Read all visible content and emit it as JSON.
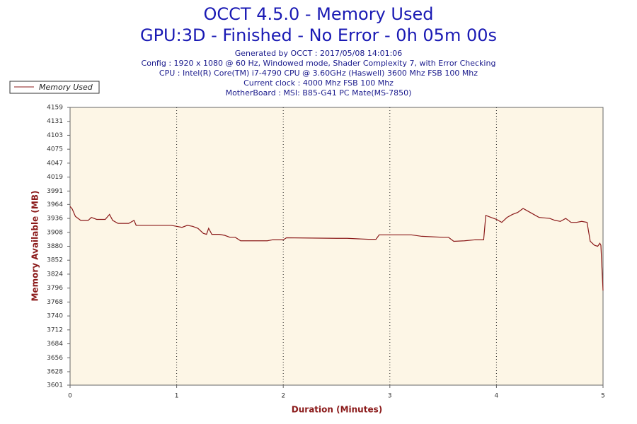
{
  "chart_data": {
    "type": "line",
    "title": "OCCT 4.5.0 - Memory Used",
    "subtitle": "GPU:3D - Finished - No Error - 0h 05m 00s",
    "notes": [
      "Generated by OCCT : 2017/05/08 14:01:06",
      "Config : 1920 x 1080 @ 60 Hz, Windowed mode, Shader Complexity 7, with Error Checking",
      "CPU : Intel(R) Core(TM) i7-4790 CPU @ 3.60GHz (Haswell) 3600 Mhz FSB 100 Mhz",
      "Current clock : 4000 Mhz FSB 100 Mhz",
      "MotherBoard : MSI: B85-G41 PC Mate(MS-7850)"
    ],
    "x_label": "Duration (Minutes)",
    "y_label": "Memory Available (MB)",
    "x": [
      0,
      0.02,
      0.05,
      0.1,
      0.17,
      0.2,
      0.25,
      0.33,
      0.37,
      0.4,
      0.45,
      0.55,
      0.6,
      0.62,
      0.95,
      1.0,
      1.05,
      1.1,
      1.15,
      1.2,
      1.25,
      1.28,
      1.3,
      1.33,
      1.4,
      1.45,
      1.5,
      1.55,
      1.6,
      1.85,
      1.9,
      2.0,
      2.03,
      2.5,
      2.6,
      2.8,
      2.87,
      2.9,
      3.2,
      3.3,
      3.5,
      3.55,
      3.6,
      3.7,
      3.8,
      3.88,
      3.9,
      3.95,
      4.0,
      4.05,
      4.1,
      4.15,
      4.2,
      4.25,
      4.3,
      4.35,
      4.4,
      4.5,
      4.55,
      4.6,
      4.65,
      4.7,
      4.75,
      4.8,
      4.85,
      4.88,
      4.92,
      4.95,
      4.97,
      4.98,
      5.0
    ],
    "series": [
      {
        "name": "Memory Used",
        "color": "#8b1a1a",
        "values": [
          3960,
          3955,
          3940,
          3932,
          3932,
          3938,
          3934,
          3934,
          3944,
          3932,
          3926,
          3926,
          3932,
          3922,
          3922,
          3920,
          3918,
          3922,
          3920,
          3916,
          3906,
          3904,
          3916,
          3904,
          3904,
          3902,
          3898,
          3898,
          3891,
          3891,
          3893,
          3893,
          3897,
          3896,
          3896,
          3894,
          3894,
          3903,
          3903,
          3900,
          3898,
          3898,
          3890,
          3891,
          3893,
          3893,
          3942,
          3938,
          3934,
          3928,
          3938,
          3944,
          3948,
          3956,
          3950,
          3944,
          3938,
          3936,
          3932,
          3930,
          3936,
          3928,
          3928,
          3930,
          3928,
          3890,
          3882,
          3880,
          3886,
          3882,
          3791
        ]
      }
    ],
    "xlim": [
      0,
      5
    ],
    "xticks": [
      0,
      1,
      2,
      3,
      4,
      5
    ],
    "ylim": [
      3601,
      4159
    ],
    "yticks": [
      3601,
      3628,
      3656,
      3684,
      3712,
      3740,
      3768,
      3796,
      3824,
      3852,
      3880,
      3908,
      3936,
      3964,
      3991,
      4019,
      4047,
      4075,
      4103,
      4131,
      4159
    ],
    "grid": true
  }
}
